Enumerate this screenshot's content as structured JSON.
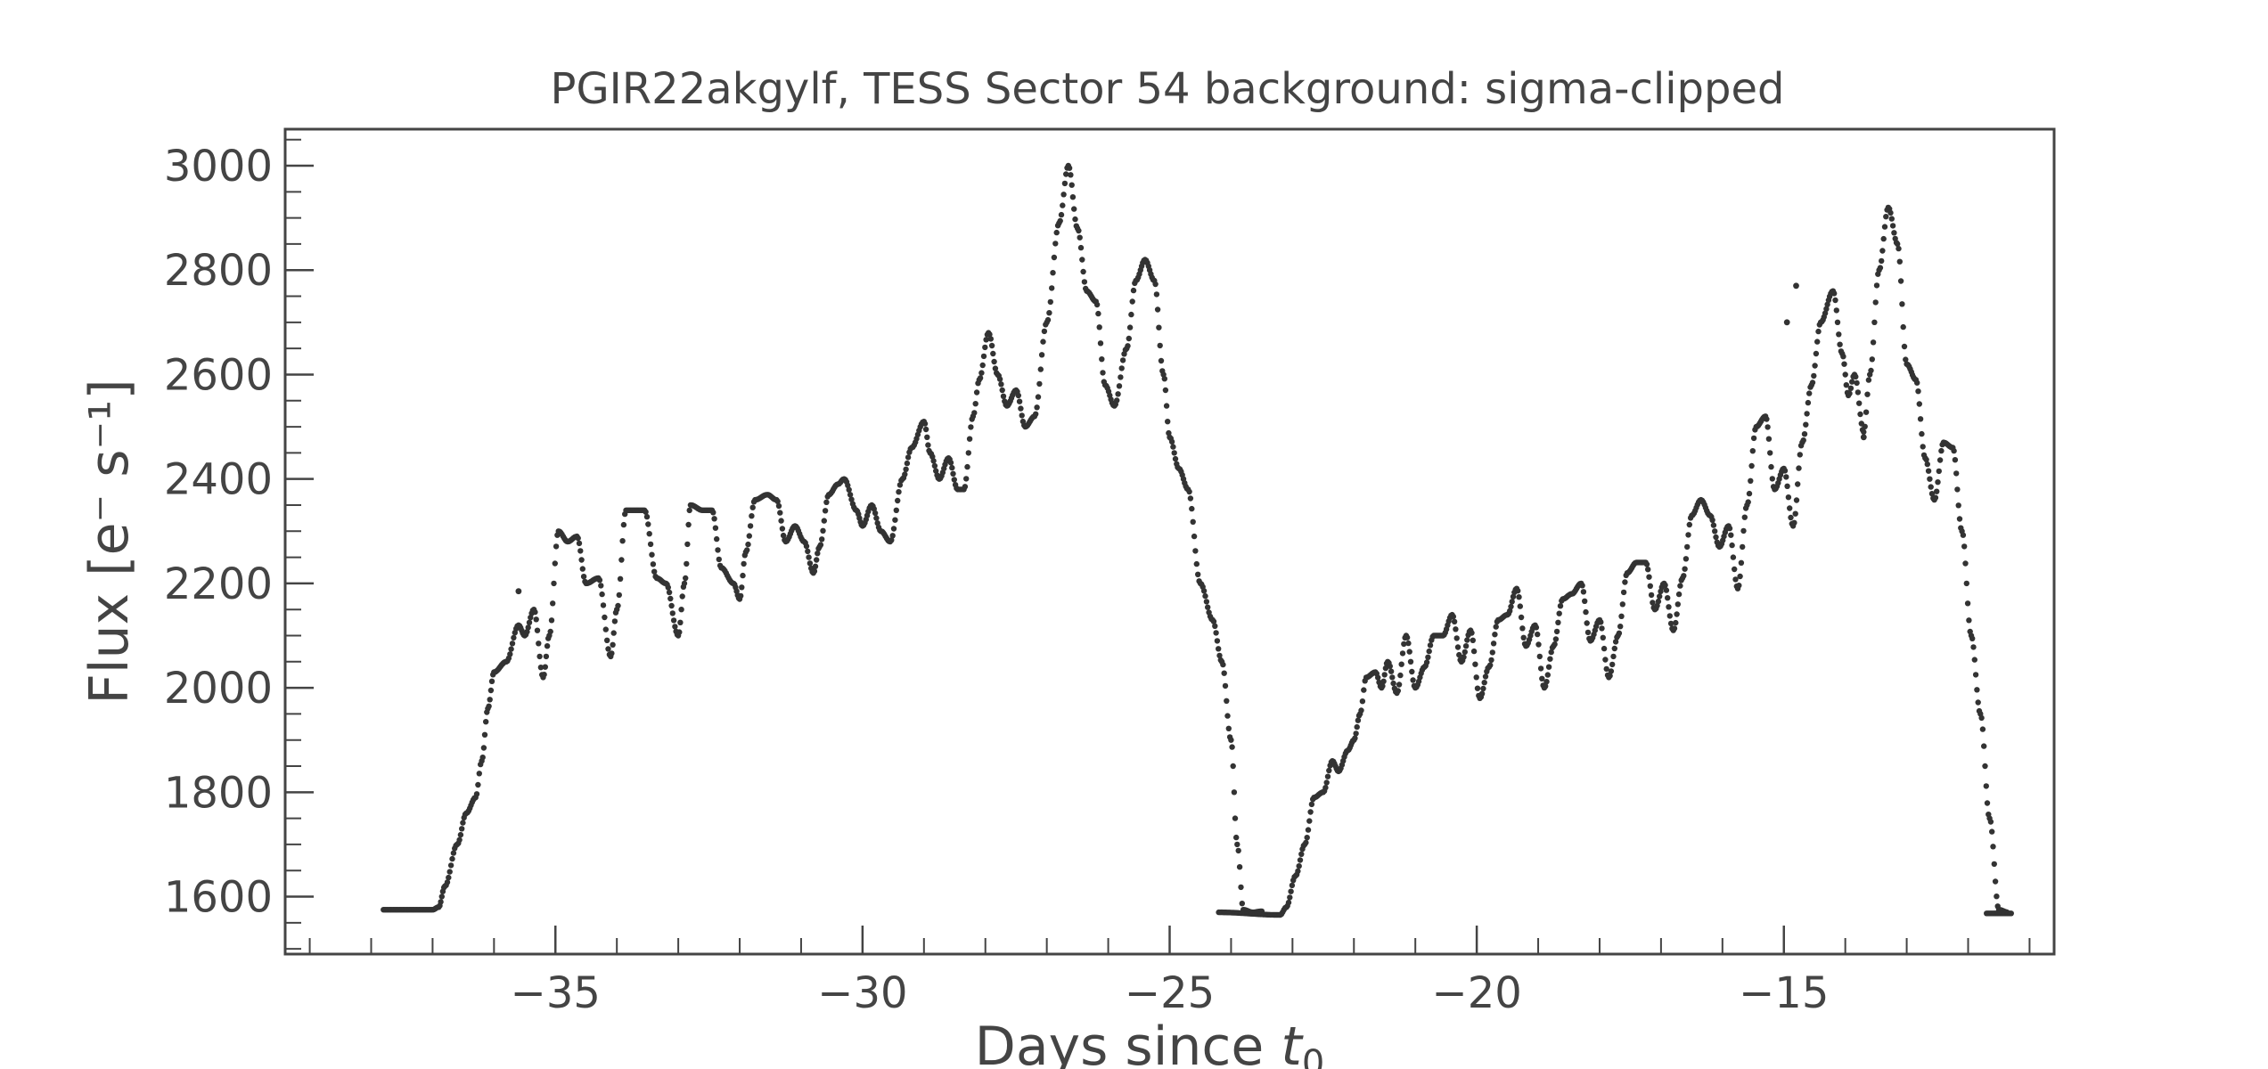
{
  "chart_data": {
    "type": "scatter",
    "title": "PGIR22akgylf, TESS Sector 54 background: sigma-clipped",
    "xlabel_main": "Days since ",
    "xlabel_var": "t",
    "xlabel_sub": "0",
    "ylabel": "Flux [e⁻ s⁻¹]",
    "xlim": [
      -39.4,
      -10.6
    ],
    "ylim": [
      1490,
      3070
    ],
    "x_ticks": [
      -35,
      -30,
      -25,
      -20,
      -15
    ],
    "x_tick_labels": [
      "−35",
      "−30",
      "−25",
      "−20",
      "−15"
    ],
    "y_ticks": [
      1600,
      1800,
      2000,
      2200,
      2400,
      2600,
      2800,
      3000
    ],
    "y_tick_labels": [
      "1600",
      "1800",
      "2000",
      "2200",
      "2400",
      "2600",
      "2800",
      "3000"
    ],
    "x_minor_step": 1,
    "y_minor_step": 50,
    "marker_color": "#333333",
    "series": [
      {
        "segment": 1,
        "points": [
          [
            -37.8,
            1575
          ],
          [
            -37.0,
            1575
          ],
          [
            -36.9,
            1580
          ],
          [
            -36.8,
            1620
          ],
          [
            -36.6,
            1700
          ],
          [
            -36.45,
            1760
          ],
          [
            -36.3,
            1790
          ],
          [
            -36.2,
            1860
          ],
          [
            -36.1,
            1960
          ],
          [
            -36.0,
            2030
          ],
          [
            -35.8,
            2050
          ],
          [
            -35.6,
            2120
          ],
          [
            -35.5,
            2100
          ],
          [
            -35.35,
            2150
          ],
          [
            -35.2,
            2020
          ],
          [
            -35.1,
            2100
          ],
          [
            -34.95,
            2300
          ],
          [
            -34.8,
            2280
          ],
          [
            -34.65,
            2290
          ],
          [
            -34.5,
            2200
          ],
          [
            -34.3,
            2210
          ],
          [
            -34.1,
            2060
          ],
          [
            -34.0,
            2150
          ],
          [
            -33.85,
            2340
          ],
          [
            -33.7,
            2340
          ],
          [
            -33.55,
            2340
          ],
          [
            -33.35,
            2210
          ],
          [
            -33.2,
            2200
          ],
          [
            -33.0,
            2100
          ],
          [
            -32.9,
            2200
          ],
          [
            -32.8,
            2350
          ],
          [
            -32.6,
            2340
          ],
          [
            -32.45,
            2340
          ],
          [
            -32.3,
            2230
          ],
          [
            -32.1,
            2200
          ],
          [
            -32.0,
            2170
          ],
          [
            -31.9,
            2260
          ],
          [
            -31.75,
            2360
          ],
          [
            -31.55,
            2370
          ],
          [
            -31.4,
            2360
          ],
          [
            -31.25,
            2280
          ],
          [
            -31.1,
            2310
          ],
          [
            -30.95,
            2280
          ],
          [
            -30.8,
            2220
          ],
          [
            -30.7,
            2270
          ],
          [
            -30.55,
            2370
          ],
          [
            -30.4,
            2390
          ],
          [
            -30.3,
            2400
          ],
          [
            -30.1,
            2340
          ],
          [
            -30.0,
            2310
          ],
          [
            -29.85,
            2350
          ],
          [
            -29.7,
            2300
          ],
          [
            -29.55,
            2280
          ],
          [
            -29.35,
            2400
          ],
          [
            -29.2,
            2460
          ],
          [
            -29.0,
            2510
          ],
          [
            -28.9,
            2450
          ],
          [
            -28.75,
            2400
          ],
          [
            -28.6,
            2440
          ],
          [
            -28.45,
            2380
          ],
          [
            -28.35,
            2380
          ],
          [
            -28.2,
            2520
          ],
          [
            -28.1,
            2590
          ],
          [
            -27.95,
            2680
          ],
          [
            -27.8,
            2600
          ],
          [
            -27.65,
            2540
          ],
          [
            -27.5,
            2570
          ],
          [
            -27.35,
            2500
          ],
          [
            -27.2,
            2520
          ],
          [
            -27.0,
            2700
          ],
          [
            -26.8,
            2890
          ],
          [
            -26.65,
            3000
          ],
          [
            -26.5,
            2880
          ],
          [
            -26.35,
            2760
          ],
          [
            -26.2,
            2740
          ],
          [
            -26.05,
            2580
          ],
          [
            -25.9,
            2540
          ],
          [
            -25.7,
            2650
          ],
          [
            -25.55,
            2780
          ],
          [
            -25.4,
            2820
          ],
          [
            -25.25,
            2780
          ],
          [
            -25.1,
            2600
          ],
          [
            -25.0,
            2480
          ],
          [
            -24.85,
            2420
          ],
          [
            -24.7,
            2380
          ],
          [
            -24.5,
            2200
          ],
          [
            -24.3,
            2130
          ],
          [
            -24.15,
            2050
          ],
          [
            -24.0,
            1900
          ],
          [
            -23.9,
            1700
          ],
          [
            -23.8,
            1575
          ],
          [
            -23.65,
            1570
          ],
          [
            -23.5,
            1572
          ]
        ]
      },
      {
        "segment": 2,
        "points": [
          [
            -24.2,
            1570
          ],
          [
            -23.2,
            1565
          ],
          [
            -23.1,
            1580
          ],
          [
            -22.95,
            1640
          ],
          [
            -22.8,
            1700
          ],
          [
            -22.65,
            1790
          ],
          [
            -22.5,
            1800
          ],
          [
            -22.35,
            1860
          ],
          [
            -22.25,
            1840
          ],
          [
            -22.1,
            1880
          ],
          [
            -22.0,
            1900
          ],
          [
            -21.9,
            1950
          ],
          [
            -21.8,
            2020
          ],
          [
            -21.65,
            2030
          ],
          [
            -21.55,
            2000
          ],
          [
            -21.45,
            2050
          ],
          [
            -21.3,
            1990
          ],
          [
            -21.15,
            2100
          ],
          [
            -21.0,
            2000
          ],
          [
            -20.85,
            2040
          ],
          [
            -20.7,
            2100
          ],
          [
            -20.55,
            2100
          ],
          [
            -20.4,
            2140
          ],
          [
            -20.25,
            2050
          ],
          [
            -20.1,
            2110
          ],
          [
            -19.95,
            1980
          ],
          [
            -19.8,
            2040
          ],
          [
            -19.65,
            2130
          ],
          [
            -19.5,
            2140
          ],
          [
            -19.35,
            2190
          ],
          [
            -19.2,
            2080
          ],
          [
            -19.05,
            2120
          ],
          [
            -18.9,
            2000
          ],
          [
            -18.75,
            2080
          ],
          [
            -18.6,
            2170
          ],
          [
            -18.45,
            2180
          ],
          [
            -18.3,
            2200
          ],
          [
            -18.15,
            2090
          ],
          [
            -18.0,
            2130
          ],
          [
            -17.85,
            2020
          ],
          [
            -17.7,
            2100
          ],
          [
            -17.55,
            2220
          ],
          [
            -17.4,
            2240
          ],
          [
            -17.25,
            2240
          ],
          [
            -17.1,
            2150
          ],
          [
            -16.95,
            2200
          ],
          [
            -16.8,
            2110
          ],
          [
            -16.65,
            2210
          ],
          [
            -16.5,
            2330
          ],
          [
            -16.35,
            2360
          ],
          [
            -16.2,
            2330
          ],
          [
            -16.05,
            2270
          ],
          [
            -15.9,
            2310
          ],
          [
            -15.75,
            2190
          ],
          [
            -15.6,
            2350
          ],
          [
            -15.45,
            2500
          ],
          [
            -15.3,
            2520
          ],
          [
            -15.15,
            2380
          ],
          [
            -15.0,
            2420
          ],
          [
            -14.85,
            2310
          ],
          [
            -14.7,
            2470
          ],
          [
            -14.55,
            2580
          ],
          [
            -14.4,
            2700
          ],
          [
            -14.2,
            2760
          ],
          [
            -14.05,
            2640
          ],
          [
            -13.95,
            2560
          ],
          [
            -13.85,
            2600
          ],
          [
            -13.7,
            2490
          ],
          [
            -13.6,
            2600
          ],
          [
            -13.45,
            2800
          ],
          [
            -13.3,
            2920
          ],
          [
            -13.15,
            2850
          ],
          [
            -13.0,
            2620
          ],
          [
            -12.85,
            2590
          ],
          [
            -12.7,
            2440
          ],
          [
            -12.55,
            2360
          ],
          [
            -12.4,
            2470
          ],
          [
            -12.25,
            2460
          ],
          [
            -12.1,
            2300
          ],
          [
            -11.95,
            2100
          ],
          [
            -11.8,
            1950
          ],
          [
            -11.65,
            1750
          ],
          [
            -11.5,
            1575
          ],
          [
            -11.35,
            1570
          ],
          [
            -11.7,
            1568
          ],
          [
            -11.7,
            1568
          ],
          [
            -11.3,
            1568
          ]
        ]
      }
    ],
    "isolated_points": [
      [
        -35.6,
        2185
      ],
      [
        -14.95,
        2700
      ],
      [
        -14.8,
        2770
      ],
      [
        -13.7,
        2480
      ]
    ]
  }
}
